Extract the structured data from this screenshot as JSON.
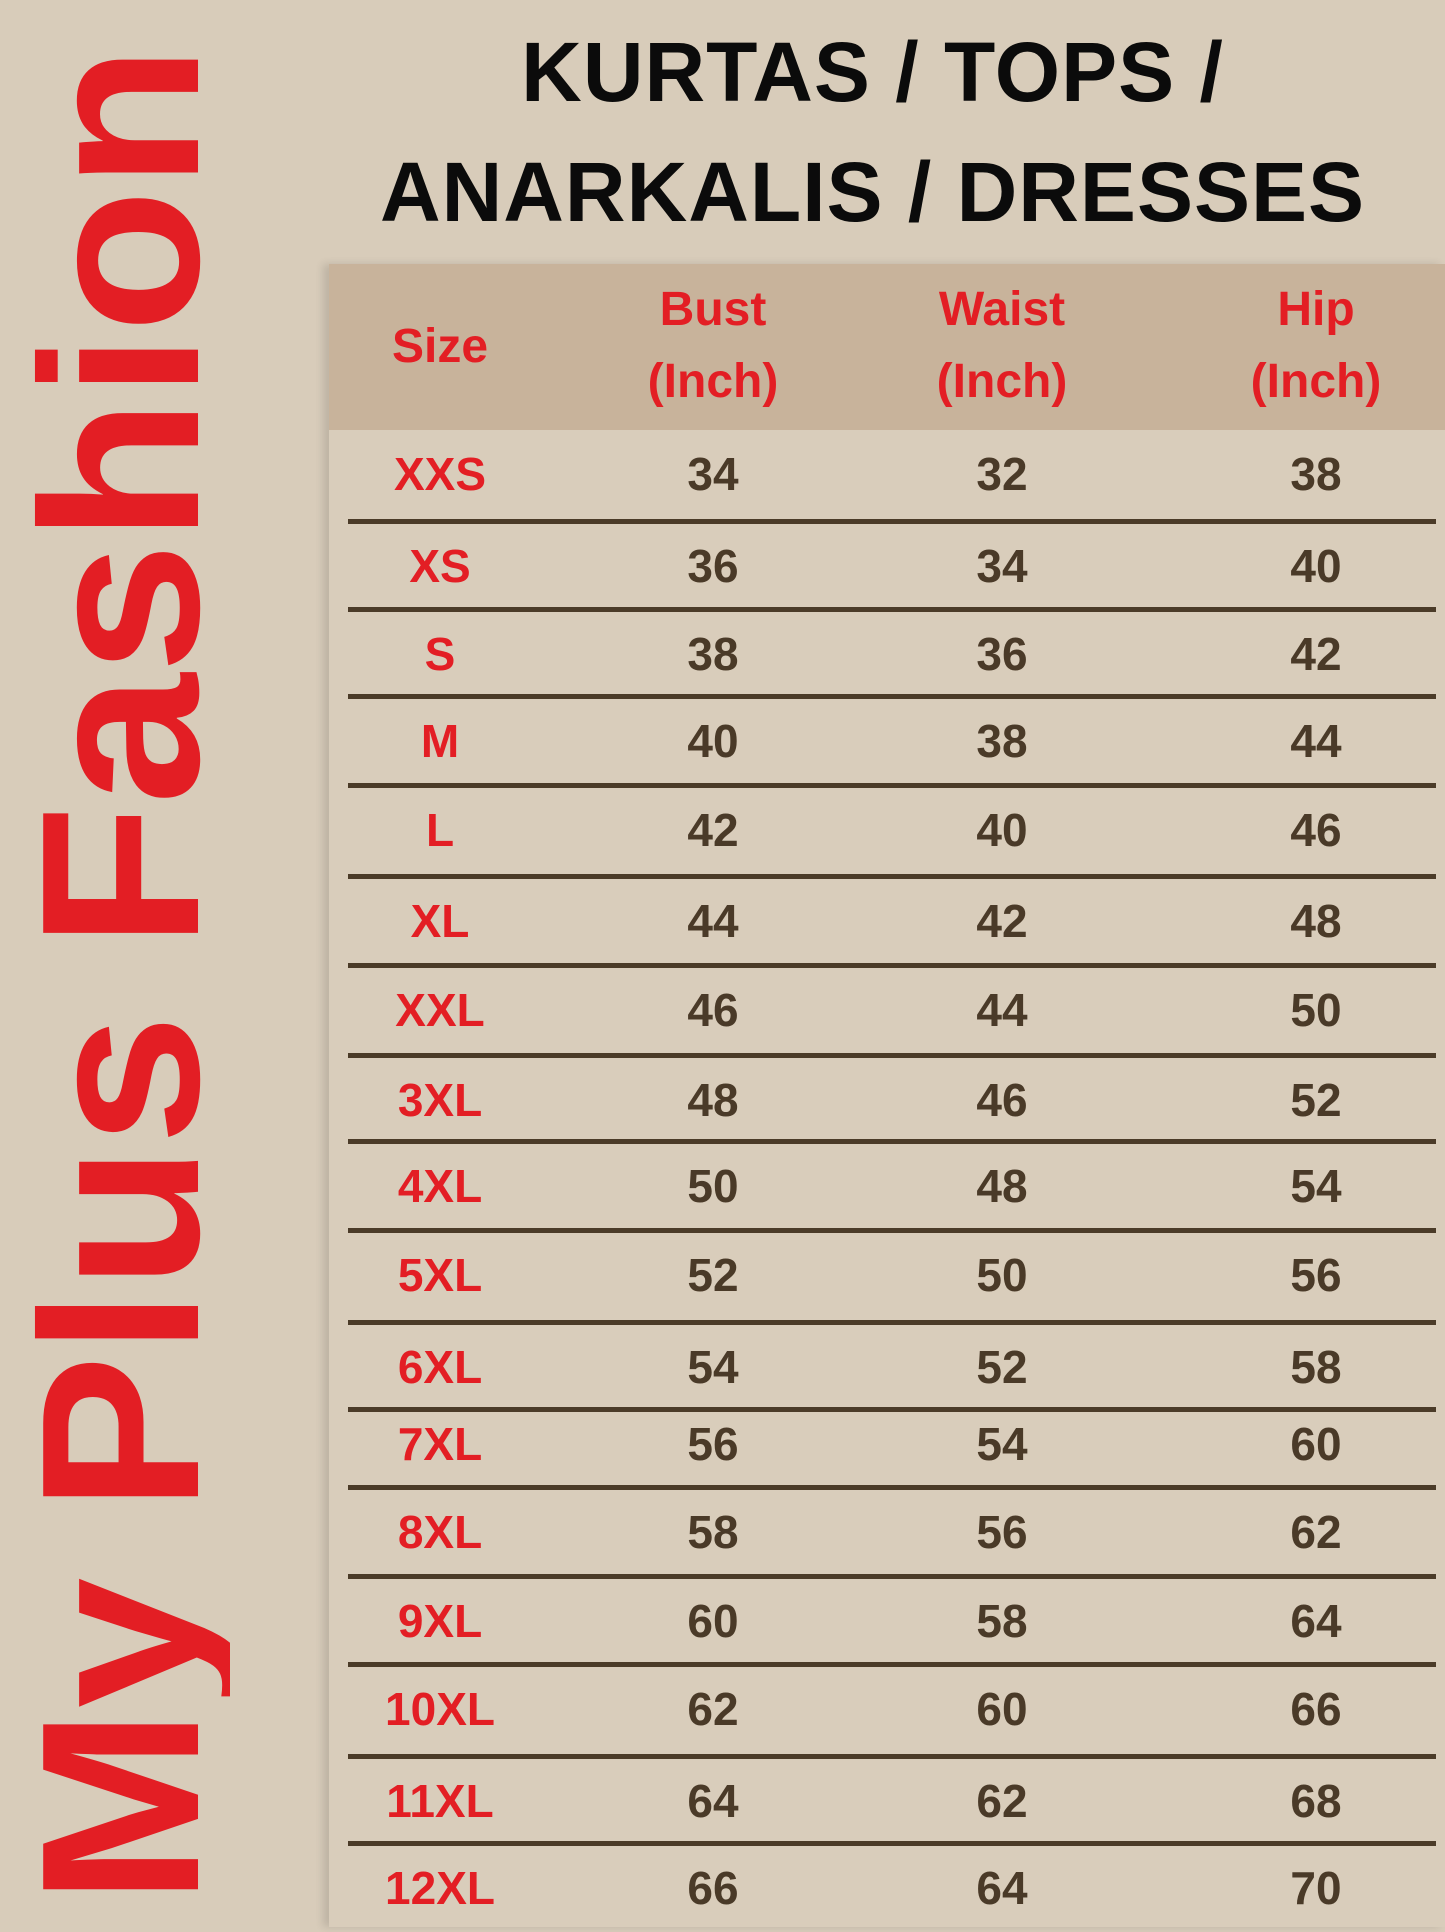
{
  "brand": {
    "name": "My Plus Fashion",
    "color": "#e31e24"
  },
  "title": {
    "line1": "KURTAS / TOPS /",
    "line2": "ANARKALIS / DRESSES"
  },
  "table": {
    "headers": [
      {
        "line1": "Size",
        "line2": ""
      },
      {
        "line1": "Bust",
        "line2": "(Inch)"
      },
      {
        "line1": "Waist",
        "line2": "(Inch)"
      },
      {
        "line1": "Hip",
        "line2": "(Inch)"
      }
    ],
    "rows": [
      [
        "XXS",
        "34",
        "32",
        "38"
      ],
      [
        "XS",
        "36",
        "34",
        "40"
      ],
      [
        "S",
        "38",
        "36",
        "42"
      ],
      [
        "M",
        "40",
        "38",
        "44"
      ],
      [
        "L",
        "42",
        "40",
        "46"
      ],
      [
        "XL",
        "44",
        "42",
        "48"
      ],
      [
        "XXL",
        "46",
        "44",
        "50"
      ],
      [
        "3XL",
        "48",
        "46",
        "52"
      ],
      [
        "4XL",
        "50",
        "48",
        "54"
      ],
      [
        "5XL",
        "52",
        "50",
        "56"
      ],
      [
        "6XL",
        "54",
        "52",
        "58"
      ],
      [
        "7XL",
        "56",
        "54",
        "60"
      ],
      [
        "8XL",
        "58",
        "56",
        "62"
      ],
      [
        "9XL",
        "60",
        "58",
        "64"
      ],
      [
        "10XL",
        "62",
        "60",
        "66"
      ],
      [
        "11XL",
        "64",
        "62",
        "68"
      ],
      [
        "12XL",
        "66",
        "64",
        "70"
      ]
    ]
  },
  "colors": {
    "background": "#d8ccba",
    "header_band": "#c8b39b",
    "size_text": "#e31e24",
    "value_text": "#4a3a28"
  }
}
